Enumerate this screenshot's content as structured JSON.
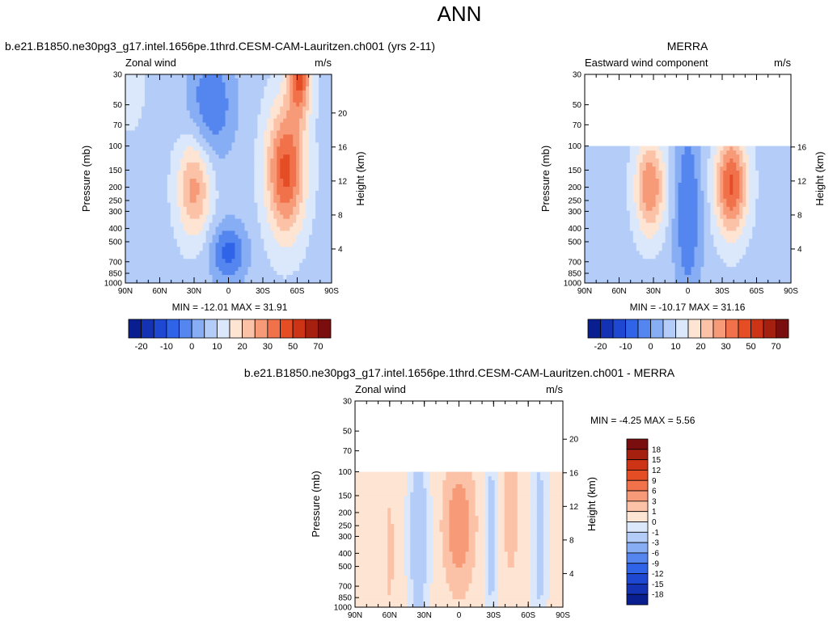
{
  "figure_title": "ANN",
  "chart_data": [
    {
      "id": "model",
      "type": "heatmap",
      "title": "b.e21.B1850.ne30pg3_g17.intel.1656pe.1thrd.CESM-CAM-Lauritzen.ch001 (yrs 2-11)",
      "left_label": "Zonal wind",
      "right_label": "m/s",
      "xlabel": "",
      "ylabel": "Pressure (mb)",
      "y2label": "Height (km)",
      "x_ticks": [
        "90N",
        "60N",
        "30N",
        "0",
        "30S",
        "60S",
        "90S"
      ],
      "y_ticks": [
        "30",
        "50",
        "70",
        "100",
        "150",
        "200",
        "250",
        "300",
        "400",
        "500",
        "700",
        "850",
        "1000"
      ],
      "y2_ticks": [
        "20",
        "16",
        "12",
        "8",
        "4"
      ],
      "ylim": [
        1000,
        30
      ],
      "min_label": "MIN = -12.01   MAX =  31.91",
      "min": -12.01,
      "max": 31.91,
      "data_top_mb": 30,
      "blobs": [
        {
          "lat": 30,
          "p": 200,
          "val": 22,
          "sx": 15,
          "sy": 0.85
        },
        {
          "lat": -50,
          "p": 150,
          "val": 31.9,
          "sx": 17,
          "sy": 1.1
        },
        {
          "lat": -62,
          "p": 30,
          "val": 30,
          "sx": 10,
          "sy": 0.7
        },
        {
          "lat": 15,
          "p": 50,
          "val": -10,
          "sx": 20,
          "sy": 0.9
        },
        {
          "lat": 0,
          "p": 600,
          "val": -12,
          "sx": 16,
          "sy": 0.5
        },
        {
          "lat": 85,
          "p": 30,
          "val": 6,
          "sx": 20,
          "sy": 1.5
        }
      ],
      "base": 3
    },
    {
      "id": "obs",
      "type": "heatmap",
      "title": "MERRA",
      "left_label": "Eastward wind component",
      "right_label": "m/s",
      "ylabel": "Pressure (mb)",
      "y2label": "Height (km)",
      "x_ticks": [
        "90N",
        "60N",
        "30N",
        "0",
        "30S",
        "60S",
        "90S"
      ],
      "y_ticks": [
        "30",
        "50",
        "70",
        "100",
        "150",
        "200",
        "250",
        "300",
        "400",
        "500",
        "700",
        "850",
        "1000"
      ],
      "y2_ticks": [
        "16",
        "12",
        "8",
        "4"
      ],
      "ylim": [
        1000,
        30
      ],
      "min_label": "MIN = -10.17   MAX =  31.16",
      "min": -10.17,
      "max": 31.16,
      "data_top_mb": 100,
      "blobs": [
        {
          "lat": 33,
          "p": 200,
          "val": 25,
          "sx": 13,
          "sy": 0.8
        },
        {
          "lat": -38,
          "p": 190,
          "val": 31,
          "sx": 14,
          "sy": 0.85
        },
        {
          "lat": 0,
          "p": 300,
          "val": -10,
          "sx": 12,
          "sy": 1.6
        }
      ],
      "base": 3
    },
    {
      "id": "diff",
      "type": "heatmap",
      "title": "b.e21.B1850.ne30pg3_g17.intel.1656pe.1thrd.CESM-CAM-Lauritzen.ch001 - MERRA",
      "left_label": "Zonal wind",
      "right_label": "m/s",
      "ylabel": "Pressure (mb)",
      "y2label": "Height (km)",
      "x_ticks": [
        "90N",
        "60N",
        "30N",
        "0",
        "30S",
        "60S",
        "90S"
      ],
      "y_ticks": [
        "30",
        "50",
        "70",
        "100",
        "150",
        "200",
        "250",
        "300",
        "400",
        "500",
        "700",
        "850",
        "1000"
      ],
      "y2_ticks": [
        "20",
        "16",
        "12",
        "8",
        "4"
      ],
      "ylim": [
        1000,
        30
      ],
      "min_label": "MIN =  -4.25   MAX =   5.56",
      "min": -4.25,
      "max": 5.56,
      "data_top_mb": 100,
      "blobs": [
        {
          "lat": 0,
          "p": 250,
          "val": 5.5,
          "sx": 11,
          "sy": 0.9
        },
        {
          "lat": -45,
          "p": 150,
          "val": 2.5,
          "sx": 6,
          "sy": 1.2
        },
        {
          "lat": 60,
          "p": 400,
          "val": 1.2,
          "sx": 6,
          "sy": 1.5
        },
        {
          "lat": 35,
          "p": 300,
          "val": -2.5,
          "sx": 8,
          "sy": 1.5
        },
        {
          "lat": -28,
          "p": 300,
          "val": -1.5,
          "sx": 5,
          "sy": 2
        },
        {
          "lat": -70,
          "p": 300,
          "val": -1.5,
          "sx": 6,
          "sy": 2
        }
      ],
      "base": 0.3
    }
  ],
  "colorbar_main": {
    "labels": [
      "-20",
      "-10",
      "0",
      "10",
      "20",
      "30",
      "50",
      "70"
    ],
    "colors": [
      "#0a1f8f",
      "#1432b4",
      "#1e48d2",
      "#3064e8",
      "#5586f0",
      "#87aef5",
      "#b4ccf8",
      "#dbe8fb",
      "#fde4d3",
      "#fbc2a7",
      "#f69a78",
      "#f0714a",
      "#e54d25",
      "#cc3415",
      "#a62010",
      "#7a0d0d"
    ],
    "thresholds": [
      -25,
      -20,
      -15,
      -10,
      -5,
      0,
      5,
      10,
      15,
      20,
      25,
      30,
      40,
      50,
      60,
      70
    ]
  },
  "colorbar_diff": {
    "labels": [
      "18",
      "15",
      "12",
      "9",
      "6",
      "3",
      "1",
      "0",
      "-1",
      "-3",
      "-6",
      "-9",
      "-12",
      "-15",
      "-18"
    ],
    "colors": [
      "#7a0d0d",
      "#a62010",
      "#cc3415",
      "#e54d25",
      "#f0714a",
      "#f69a78",
      "#fbc2a7",
      "#fde4d3",
      "#dbe8fb",
      "#b4ccf8",
      "#87aef5",
      "#5586f0",
      "#3064e8",
      "#1e48d2",
      "#1432b4",
      "#0a1f8f"
    ],
    "thresholds": [
      -18,
      -15,
      -12,
      -9,
      -6,
      -3,
      -1,
      0,
      1,
      3,
      6,
      9,
      12,
      15,
      18
    ]
  }
}
